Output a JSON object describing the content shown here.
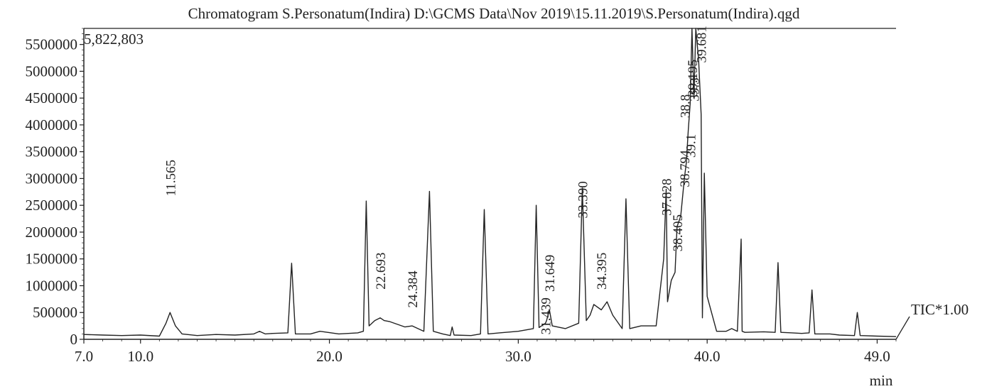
{
  "chart_data": {
    "type": "line",
    "title": "Chromatogram S.Personatum(Indira) D:\\GCMS Data\\Nov 2019\\15.11.2019\\S.Personatum(Indira).qgd",
    "max_intensity_label": "5,822,803",
    "xlabel": "min",
    "ylabel": "",
    "xlim": [
      7.0,
      50.0
    ],
    "ylim": [
      0,
      5800000
    ],
    "x_ticks": [
      7.0,
      10.0,
      20.0,
      30.0,
      40.0,
      49.0
    ],
    "x_tick_labels": [
      "7.0",
      "10.0",
      "20.0",
      "30.0",
      "40.0",
      "49.0"
    ],
    "y_ticks": [
      0,
      500000,
      1000000,
      1500000,
      2000000,
      2500000,
      3000000,
      3500000,
      4000000,
      4500000,
      5000000,
      5500000
    ],
    "y_tick_labels": [
      "0",
      "500000",
      "1000000",
      "1500000",
      "2000000",
      "2500000",
      "3000000",
      "3500000",
      "4000000",
      "4500000",
      "5000000",
      "5500000"
    ],
    "series": [
      {
        "name": "TIC*1.00",
        "color": "#222222",
        "x": [
          7.0,
          8.0,
          9.0,
          10.0,
          11.0,
          11.35,
          11.565,
          11.85,
          12.2,
          13.0,
          14.0,
          15.0,
          16.0,
          16.3,
          16.6,
          17.0,
          17.8,
          18.0,
          18.2,
          19.0,
          19.5,
          20.5,
          21.5,
          21.8,
          21.95,
          22.1,
          22.4,
          22.693,
          22.9,
          23.2,
          24.0,
          24.384,
          25.0,
          25.3,
          25.5,
          26.0,
          26.4,
          26.5,
          26.6,
          27.5,
          28.0,
          28.2,
          28.4,
          29.0,
          30.0,
          30.8,
          30.95,
          31.1,
          31.439,
          31.5,
          31.649,
          31.8,
          32.5,
          33.2,
          33.39,
          33.6,
          33.8,
          34.0,
          34.395,
          34.7,
          35.0,
          35.5,
          35.7,
          35.9,
          36.5,
          37.3,
          37.7,
          37.828,
          37.9,
          38.1,
          38.3,
          38.405,
          38.6,
          38.794,
          38.9,
          39.0,
          39.1,
          39.195,
          39.3,
          39.4,
          39.55,
          39.681,
          39.75,
          39.85,
          40.0,
          40.5,
          41.0,
          41.3,
          41.6,
          41.8,
          41.85,
          42.0,
          43.0,
          43.6,
          43.75,
          43.9,
          44.5,
          45.0,
          45.4,
          45.55,
          45.7,
          46.5,
          47.0,
          47.8,
          47.95,
          48.1,
          49.0,
          50.0
        ],
        "y": [
          90000,
          80000,
          70000,
          80000,
          60000,
          300000,
          500000,
          250000,
          100000,
          70000,
          90000,
          80000,
          100000,
          150000,
          100000,
          110000,
          120000,
          1420000,
          100000,
          100000,
          150000,
          100000,
          120000,
          150000,
          2580000,
          250000,
          350000,
          400000,
          350000,
          330000,
          230000,
          250000,
          150000,
          2760000,
          150000,
          100000,
          70000,
          230000,
          80000,
          70000,
          100000,
          2420000,
          100000,
          120000,
          150000,
          200000,
          2500000,
          220000,
          300000,
          350000,
          550000,
          250000,
          200000,
          300000,
          2820000,
          350000,
          450000,
          650000,
          550000,
          700000,
          450000,
          200000,
          2620000,
          200000,
          250000,
          250000,
          1500000,
          2800000,
          700000,
          1100000,
          1250000,
          2100000,
          2300000,
          3000000,
          3300000,
          3900000,
          4400000,
          5800000,
          4500000,
          5822803,
          5200000,
          4200000,
          400000,
          3100000,
          800000,
          150000,
          150000,
          200000,
          150000,
          1870000,
          150000,
          130000,
          140000,
          130000,
          1430000,
          130000,
          120000,
          110000,
          120000,
          920000,
          100000,
          100000,
          80000,
          70000,
          500000,
          70000,
          60000,
          50000
        ]
      }
    ],
    "peak_labels": [
      "11.565",
      "22.693",
      "24.384",
      "31.439",
      "31.649",
      "33.390",
      "34.395",
      "37.828",
      "38.405",
      "38.794",
      "39.195",
      "39.681",
      "38.8",
      "39.1",
      "39.3"
    ],
    "peak_label_x": [
      11.565,
      22.693,
      24.384,
      31.439,
      31.649,
      33.39,
      34.395,
      37.828,
      38.405,
      38.794,
      39.195,
      39.681,
      38.8,
      39.1,
      39.3
    ],
    "peak_label_top": [
      3350000,
      1620000,
      1280000,
      780000,
      1580000,
      2950000,
      1620000,
      3000000,
      2330000,
      3530000,
      5220000,
      5850000,
      4570000,
      3830000,
      4880000
    ],
    "grid": false,
    "legend": "none"
  }
}
